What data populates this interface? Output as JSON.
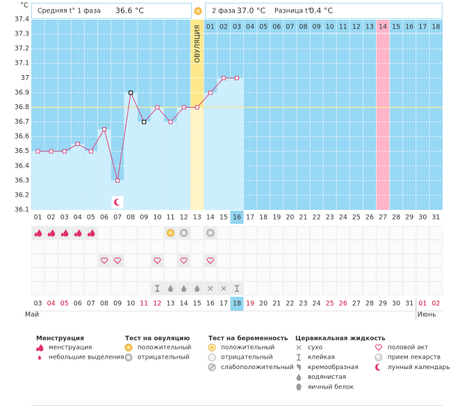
{
  "header": {
    "unit": "°C",
    "phase1": "Средняя t° 1 фаза",
    "phase1_temp": "36.6 °C",
    "phase2": "2 фаза",
    "phase2_temp": "37.0 °C",
    "diff": "Разница t°",
    "diff_temp": "0.4 °C"
  },
  "chart_data": {
    "type": "line",
    "categories": [
      "01",
      "02",
      "03",
      "04",
      "05",
      "06",
      "07",
      "08",
      "09",
      "10",
      "11",
      "12",
      "13",
      "14",
      "15",
      "16",
      "17",
      "18",
      "19",
      "20",
      "21",
      "22",
      "23",
      "24",
      "25",
      "26",
      "27",
      "28",
      "29",
      "30",
      "31"
    ],
    "values": [
      36.5,
      36.5,
      36.5,
      36.55,
      36.5,
      36.65,
      36.3,
      36.9,
      36.7,
      36.8,
      36.7,
      36.8,
      36.8,
      36.9,
      37.0,
      37.0,
      null,
      null,
      null,
      null,
      null,
      null,
      null,
      null,
      null,
      null,
      null,
      null,
      null,
      null,
      null
    ],
    "ylim": [
      36.1,
      37.4
    ],
    "yticks": [
      36.1,
      36.2,
      36.3,
      36.4,
      36.5,
      36.6,
      36.7,
      36.8,
      36.9,
      37,
      37.1,
      37.2,
      37.3,
      37.4
    ],
    "grid": true,
    "color": "#d6457c",
    "outliers": [
      "08",
      "09"
    ],
    "outlier_color": "#000000",
    "coverline": 36.8,
    "coverline_color": "#f3e9a6",
    "ovulation_day": "13",
    "ovulation_label": "ОВУЛЯЦИЯ",
    "expected_period_day": "27",
    "today": "16",
    "moon_day": "07",
    "cycle_labels": [
      null,
      null,
      null,
      null,
      null,
      null,
      null,
      null,
      null,
      null,
      null,
      null,
      null,
      "01",
      "02",
      "03",
      "04",
      "05",
      "06",
      "07",
      "08",
      "09",
      "10",
      "11",
      "12",
      "13",
      "14",
      "15",
      "16",
      "17",
      "18"
    ],
    "dates": [
      "03",
      "04",
      "05",
      "06",
      "07",
      "08",
      "09",
      "10",
      "11",
      "12",
      "13",
      "14",
      "15",
      "16",
      "17",
      "18",
      "19",
      "20",
      "21",
      "22",
      "23",
      "24",
      "25",
      "26",
      "27",
      "28",
      "29",
      "30",
      "31",
      "01",
      "02"
    ],
    "weekend": [
      false,
      true,
      true,
      false,
      false,
      false,
      false,
      false,
      true,
      true,
      false,
      false,
      false,
      false,
      false,
      false,
      true,
      false,
      false,
      false,
      false,
      false,
      true,
      true,
      false,
      false,
      false,
      false,
      false,
      true,
      true
    ],
    "months": [
      "Май",
      "Июнь"
    ]
  },
  "symbol_rows": [
    [
      {
        "day": "01",
        "icon": "drop"
      },
      {
        "day": "02",
        "icon": "drop"
      },
      {
        "day": "03",
        "icon": "drop"
      },
      {
        "day": "04",
        "icon": "drop"
      },
      {
        "day": "05",
        "icon": "drop"
      },
      {
        "day": "11",
        "icon": "ov-pos"
      },
      {
        "day": "12",
        "icon": "ov-neg"
      },
      {
        "day": "14",
        "icon": "ov-neg"
      }
    ],
    [],
    [
      {
        "day": "06",
        "icon": "heart"
      },
      {
        "day": "07",
        "icon": "heart"
      },
      {
        "day": "10",
        "icon": "heart"
      },
      {
        "day": "12",
        "icon": "heart"
      },
      {
        "day": "14",
        "icon": "heart"
      }
    ],
    [],
    [
      {
        "day": "10",
        "icon": "sticky"
      },
      {
        "day": "11",
        "icon": "watery"
      },
      {
        "day": "12",
        "icon": "watery"
      },
      {
        "day": "13",
        "icon": "watery"
      },
      {
        "day": "14",
        "icon": "dry"
      },
      {
        "day": "15",
        "icon": "dry"
      },
      {
        "day": "16",
        "icon": "sticky"
      }
    ]
  ],
  "legend": [
    {
      "title": "Менструация",
      "items": [
        {
          "icon": "drop",
          "label": "менструация"
        },
        {
          "icon": "small-drop",
          "label": "небольшие выделения"
        }
      ]
    },
    {
      "title": "Тест на овуляцию",
      "items": [
        {
          "icon": "ov-pos",
          "label": "положительный"
        },
        {
          "icon": "ov-neg",
          "label": "отрицательный"
        }
      ]
    },
    {
      "title": "Тест на беременность",
      "items": [
        {
          "icon": "preg-pos",
          "label": "положительный"
        },
        {
          "icon": "preg-neg",
          "label": "отрицательный"
        },
        {
          "icon": "preg-weak",
          "label": "слабоположительный"
        }
      ]
    },
    {
      "title": "Цервикальная жидкость",
      "items": [
        {
          "icon": "dry",
          "label": "сухо"
        },
        {
          "icon": "sticky",
          "label": "клейкая"
        },
        {
          "icon": "creamy",
          "label": "кремообразная"
        },
        {
          "icon": "watery",
          "label": "водянистая"
        },
        {
          "icon": "eggwhite",
          "label": "яичный белок"
        }
      ]
    },
    {
      "items": [
        {
          "icon": "heart",
          "label": "половой акт"
        },
        {
          "icon": "pill",
          "label": "прием лекарств"
        },
        {
          "icon": "moon",
          "label": "лунный календарь"
        }
      ]
    }
  ]
}
